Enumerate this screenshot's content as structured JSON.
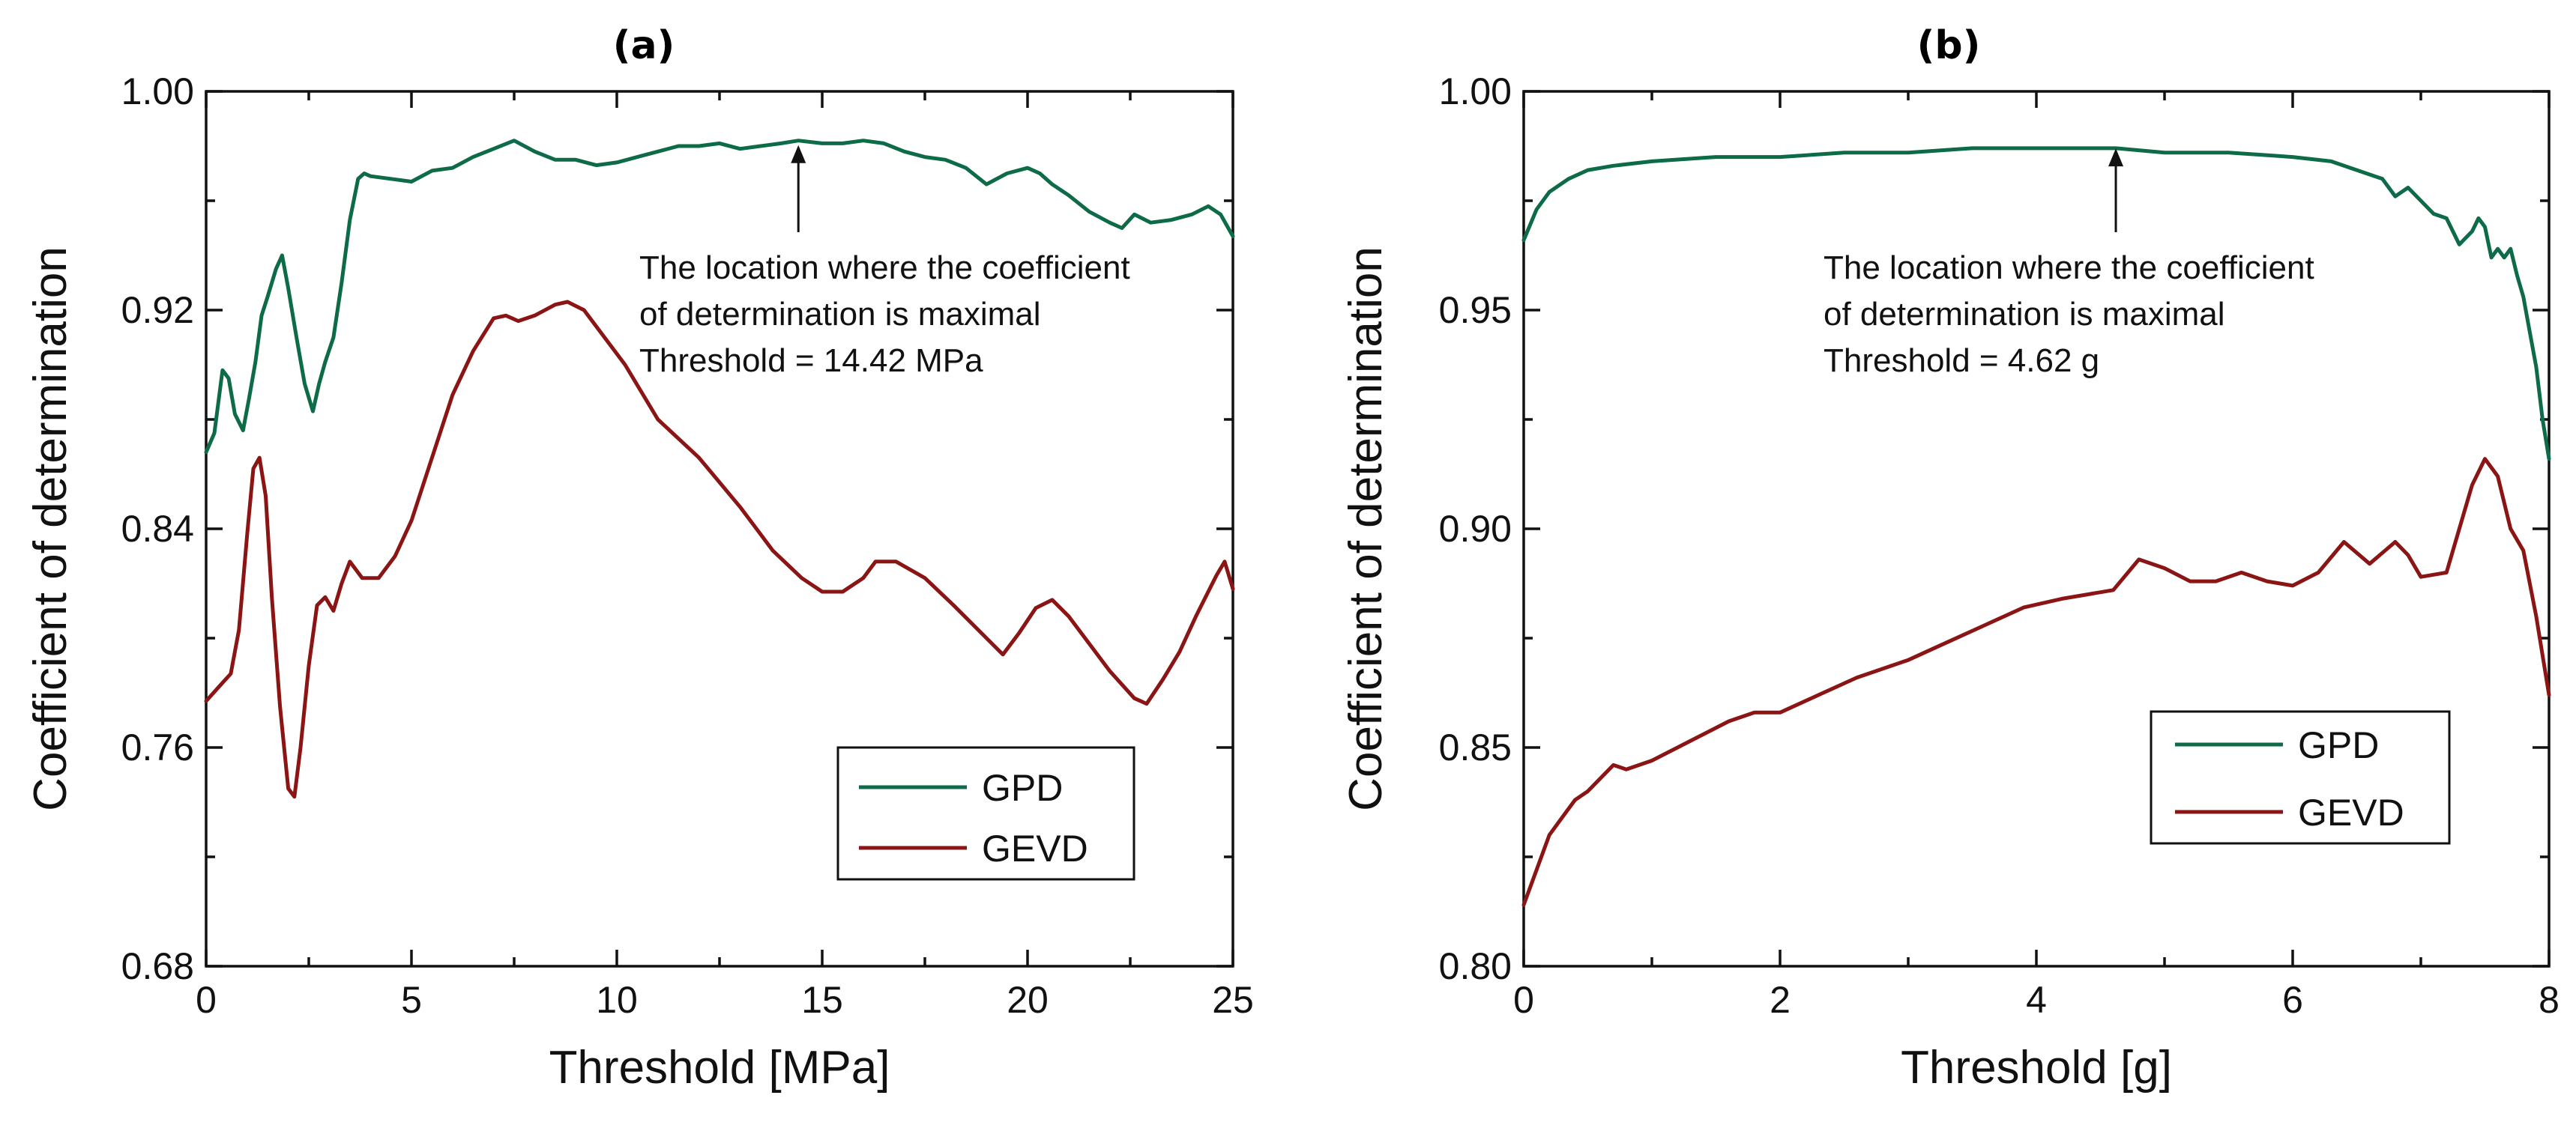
{
  "colors": {
    "gpd": "#0d6b48",
    "gevd": "#8b1414",
    "axis": "#111111"
  },
  "chart_data": [
    {
      "panel": "(a)",
      "type": "line",
      "xlabel": "Threshold [MPa]",
      "ylabel": "Coefficient of determination",
      "xlim": [
        0,
        25
      ],
      "ylim": [
        0.68,
        1.0
      ],
      "xticks": [
        0,
        5,
        10,
        15,
        20,
        25
      ],
      "xtick_labels": [
        "0",
        "5",
        "10",
        "15",
        "20",
        "25"
      ],
      "yticks": [
        0.68,
        0.76,
        0.84,
        0.92,
        1.0
      ],
      "ytick_labels": [
        "0.68",
        "0.76",
        "0.84",
        "0.92",
        "1.00"
      ],
      "annotation": {
        "lines": [
          "The location where the coefficient",
          "of determination is maximal",
          "Threshold = 14.42 MPa"
        ],
        "x": 14.42,
        "y": 0.982
      },
      "legend": {
        "position": "lower-right",
        "entries": [
          "GPD",
          "GEVD"
        ]
      },
      "series": [
        {
          "name": "GPD",
          "color": "gpd",
          "x": [
            0,
            0.2,
            0.4,
            0.55,
            0.7,
            0.9,
            1.05,
            1.2,
            1.35,
            1.5,
            1.7,
            1.85,
            2.0,
            2.2,
            2.4,
            2.6,
            2.75,
            2.9,
            3.1,
            3.3,
            3.5,
            3.7,
            3.85,
            4.0,
            4.5,
            5.0,
            5.5,
            6.0,
            6.5,
            7.0,
            7.5,
            8.0,
            8.5,
            9.0,
            9.5,
            10.0,
            10.5,
            11.0,
            11.5,
            12.0,
            12.5,
            13.0,
            13.5,
            14.0,
            14.42,
            15.0,
            15.5,
            16.0,
            16.5,
            17.0,
            17.5,
            18.0,
            18.5,
            19.0,
            19.5,
            20.0,
            20.3,
            20.6,
            21.0,
            21.5,
            22.0,
            22.3,
            22.6,
            23.0,
            23.5,
            24.0,
            24.4,
            24.7,
            25.0
          ],
          "y": [
            0.868,
            0.875,
            0.898,
            0.895,
            0.882,
            0.876,
            0.888,
            0.901,
            0.918,
            0.925,
            0.935,
            0.94,
            0.928,
            0.91,
            0.893,
            0.883,
            0.893,
            0.901,
            0.91,
            0.93,
            0.953,
            0.968,
            0.97,
            0.969,
            0.968,
            0.967,
            0.971,
            0.972,
            0.976,
            0.979,
            0.982,
            0.978,
            0.975,
            0.975,
            0.973,
            0.974,
            0.976,
            0.978,
            0.98,
            0.98,
            0.981,
            0.979,
            0.98,
            0.981,
            0.982,
            0.981,
            0.981,
            0.982,
            0.981,
            0.978,
            0.976,
            0.975,
            0.972,
            0.966,
            0.97,
            0.972,
            0.97,
            0.966,
            0.962,
            0.956,
            0.952,
            0.95,
            0.955,
            0.952,
            0.953,
            0.955,
            0.958,
            0.955,
            0.947
          ]
        },
        {
          "name": "GEVD",
          "color": "gevd",
          "x": [
            0,
            0.3,
            0.6,
            0.8,
            1.0,
            1.15,
            1.3,
            1.45,
            1.6,
            1.8,
            2.0,
            2.15,
            2.3,
            2.5,
            2.7,
            2.9,
            3.1,
            3.3,
            3.5,
            3.8,
            4.2,
            4.6,
            5.0,
            5.5,
            6.0,
            6.5,
            7.0,
            7.3,
            7.6,
            8.0,
            8.5,
            8.8,
            9.2,
            9.7,
            10.2,
            11.0,
            12.0,
            13.0,
            13.8,
            14.5,
            15.0,
            15.5,
            16.0,
            16.3,
            16.8,
            17.5,
            18.2,
            19.0,
            19.4,
            19.8,
            20.2,
            20.6,
            21.0,
            21.5,
            22.0,
            22.6,
            22.9,
            23.3,
            23.7,
            24.1,
            24.4,
            24.6,
            24.8,
            25.0
          ],
          "y": [
            0.777,
            0.782,
            0.787,
            0.803,
            0.838,
            0.862,
            0.866,
            0.852,
            0.815,
            0.775,
            0.745,
            0.742,
            0.76,
            0.79,
            0.812,
            0.815,
            0.81,
            0.82,
            0.828,
            0.822,
            0.822,
            0.83,
            0.843,
            0.866,
            0.889,
            0.905,
            0.917,
            0.918,
            0.916,
            0.918,
            0.922,
            0.923,
            0.92,
            0.91,
            0.9,
            0.88,
            0.866,
            0.848,
            0.832,
            0.822,
            0.817,
            0.817,
            0.822,
            0.828,
            0.828,
            0.822,
            0.812,
            0.8,
            0.794,
            0.802,
            0.811,
            0.814,
            0.808,
            0.798,
            0.788,
            0.778,
            0.776,
            0.785,
            0.795,
            0.808,
            0.817,
            0.823,
            0.828,
            0.818
          ]
        }
      ]
    },
    {
      "panel": "(b)",
      "type": "line",
      "xlabel": "Threshold [g]",
      "ylabel": "Coefficient of determination",
      "xlim": [
        0,
        8
      ],
      "ylim": [
        0.8,
        1.0
      ],
      "xticks": [
        0,
        2,
        4,
        6,
        8
      ],
      "xtick_labels": [
        "0",
        "2",
        "4",
        "6",
        "8"
      ],
      "yticks": [
        0.8,
        0.85,
        0.9,
        0.95,
        1.0
      ],
      "ytick_labels": [
        "0.80",
        "0.85",
        "0.90",
        "0.95",
        "1.00"
      ],
      "annotation": {
        "lines": [
          "The location where the coefficient",
          "of determination is maximal",
          "Threshold = 4.62 g"
        ],
        "x": 4.62,
        "y": 0.988
      },
      "legend": {
        "position": "lower-right",
        "entries": [
          "GPD",
          "GEVD"
        ]
      },
      "series": [
        {
          "name": "GPD",
          "color": "gpd",
          "x": [
            0,
            0.1,
            0.2,
            0.35,
            0.5,
            0.7,
            1.0,
            1.5,
            2.0,
            2.5,
            3.0,
            3.5,
            4.0,
            4.62,
            5.0,
            5.5,
            6.0,
            6.3,
            6.5,
            6.7,
            6.8,
            6.9,
            7.0,
            7.1,
            7.2,
            7.3,
            7.4,
            7.45,
            7.5,
            7.55,
            7.6,
            7.65,
            7.7,
            7.75,
            7.8,
            7.85,
            7.9,
            7.95,
            8.0
          ],
          "y": [
            0.966,
            0.973,
            0.977,
            0.98,
            0.982,
            0.983,
            0.984,
            0.985,
            0.985,
            0.986,
            0.986,
            0.987,
            0.987,
            0.987,
            0.986,
            0.986,
            0.985,
            0.984,
            0.982,
            0.98,
            0.976,
            0.978,
            0.975,
            0.972,
            0.971,
            0.965,
            0.968,
            0.971,
            0.969,
            0.962,
            0.964,
            0.962,
            0.964,
            0.958,
            0.953,
            0.945,
            0.937,
            0.925,
            0.916
          ]
        },
        {
          "name": "GEVD",
          "color": "gevd",
          "x": [
            0,
            0.1,
            0.2,
            0.3,
            0.4,
            0.5,
            0.6,
            0.7,
            0.8,
            1.0,
            1.2,
            1.4,
            1.6,
            1.8,
            2.0,
            2.3,
            2.6,
            3.0,
            3.3,
            3.6,
            3.9,
            4.2,
            4.4,
            4.6,
            4.8,
            5.0,
            5.2,
            5.4,
            5.6,
            5.8,
            6.0,
            6.2,
            6.4,
            6.6,
            6.8,
            6.9,
            7.0,
            7.2,
            7.3,
            7.4,
            7.5,
            7.6,
            7.7,
            7.8,
            7.9,
            8.0
          ],
          "y": [
            0.814,
            0.822,
            0.83,
            0.834,
            0.838,
            0.84,
            0.843,
            0.846,
            0.845,
            0.847,
            0.85,
            0.853,
            0.856,
            0.858,
            0.858,
            0.862,
            0.866,
            0.87,
            0.874,
            0.878,
            0.882,
            0.884,
            0.885,
            0.886,
            0.893,
            0.891,
            0.888,
            0.888,
            0.89,
            0.888,
            0.887,
            0.89,
            0.897,
            0.892,
            0.897,
            0.894,
            0.889,
            0.89,
            0.9,
            0.91,
            0.916,
            0.912,
            0.9,
            0.895,
            0.88,
            0.862
          ]
        }
      ]
    }
  ]
}
